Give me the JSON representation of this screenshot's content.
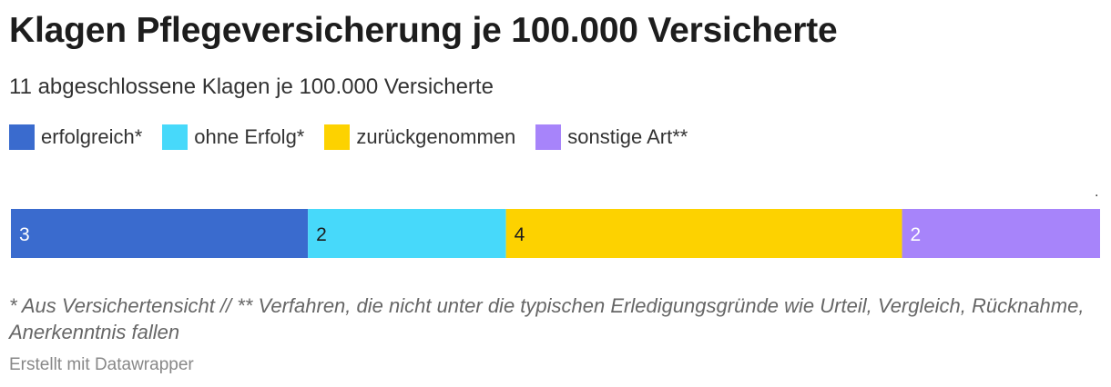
{
  "title": "Klagen Pflegeversicherung je 100.000 Versicherte",
  "subtitle": "11 abgeschlossene Klagen je 100.000 Versicherte",
  "marker": ".",
  "footnote": "* Aus Versichertensicht // ** Verfahren, die nicht unter die typischen Erledigungsgründe wie Urteil, Vergleich, Rücknahme, Anerkenntnis fallen",
  "credit": "Erstellt mit Datawrapper",
  "chart_data": {
    "type": "bar",
    "orientation": "horizontal-stacked",
    "categories": [
      ""
    ],
    "series": [
      {
        "name": "erfolgreich*",
        "values": [
          3
        ],
        "color": "#3a6bce",
        "label_color": "#ffffff"
      },
      {
        "name": "ohne Erfolg*",
        "values": [
          2
        ],
        "color": "#47d9fa",
        "label_color": "#1d1d1d"
      },
      {
        "name": "zurückgenommen",
        "values": [
          4
        ],
        "color": "#fdd200",
        "label_color": "#1d1d1d"
      },
      {
        "name": "sonstige Art**",
        "values": [
          2
        ],
        "color": "#a784fa",
        "label_color": "#ffffff"
      }
    ],
    "total": 11,
    "legend": "top-left",
    "grid": false,
    "title": "Klagen Pflegeversicherung je 100.000 Versicherte",
    "xlabel": "",
    "ylabel": ""
  }
}
